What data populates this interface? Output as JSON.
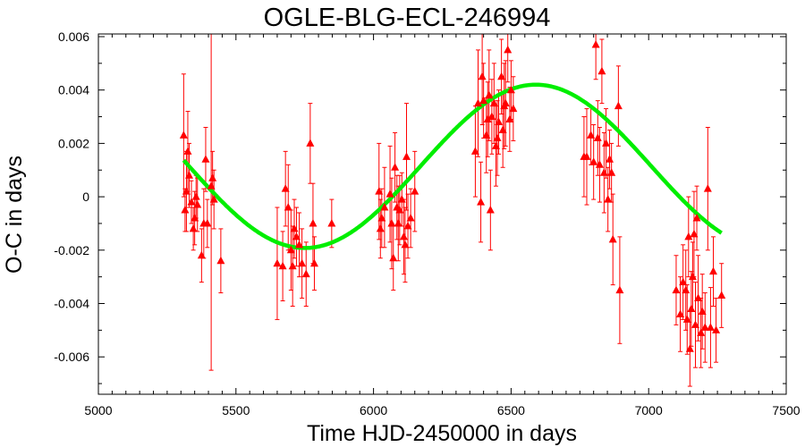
{
  "chart_data": {
    "type": "scatter",
    "title": "OGLE-BLG-ECL-246994",
    "xlabel": "Time HJD-2450000 in days",
    "ylabel": "O-C in days",
    "xlim": [
      5000,
      7500
    ],
    "ylim": [
      -0.0074,
      0.0061
    ],
    "xticks": [
      5000,
      5500,
      6000,
      6500,
      7000,
      7500
    ],
    "xtick_labels": [
      "5000",
      "5500",
      "6000",
      "6500",
      "7000",
      "7500"
    ],
    "yticks": [
      -0.006,
      -0.004,
      -0.002,
      0,
      0.002,
      0.004,
      0.006
    ],
    "ytick_labels": [
      "-0.006",
      "-0.004",
      "-0.002",
      "0",
      "0.002",
      "0.004",
      "0.006"
    ],
    "grid": false,
    "colors": {
      "points": "#ff0000",
      "fit": "#00ee00",
      "axes": "#000000"
    },
    "series": [
      {
        "marker": "triangle",
        "points": [
          {
            "x": 5310,
            "y": 0.0023,
            "err": 0.0023
          },
          {
            "x": 5315,
            "y": -0.0005,
            "err": 0.0008
          },
          {
            "x": 5320,
            "y": 0.0002,
            "err": 0.0015
          },
          {
            "x": 5325,
            "y": 0.0017,
            "err": 0.0015
          },
          {
            "x": 5330,
            "y": 0.0008,
            "err": 0.0012
          },
          {
            "x": 5338,
            "y": -0.0002,
            "err": 0.0008
          },
          {
            "x": 5345,
            "y": -0.0012,
            "err": 0.0008
          },
          {
            "x": 5350,
            "y": -0.0008,
            "err": 0.001
          },
          {
            "x": 5355,
            "y": 0.0,
            "err": 0.0008
          },
          {
            "x": 5360,
            "y": -0.0003,
            "err": 0.001
          },
          {
            "x": 5375,
            "y": -0.0022,
            "err": 0.001
          },
          {
            "x": 5383,
            "y": -0.001,
            "err": 0.0013
          },
          {
            "x": 5390,
            "y": 0.0014,
            "err": 0.0012
          },
          {
            "x": 5396,
            "y": -0.001,
            "err": 0.0009
          },
          {
            "x": 5410,
            "y": 0.0004,
            "err": 0.0069
          },
          {
            "x": 5415,
            "y": 0.0007,
            "err": 0.001
          },
          {
            "x": 5420,
            "y": -0.0001,
            "err": 0.0011
          },
          {
            "x": 5445,
            "y": -0.0024,
            "err": 0.0012
          },
          {
            "x": 5650,
            "y": -0.0025,
            "err": 0.0021
          },
          {
            "x": 5670,
            "y": -0.0026,
            "err": 0.0013
          },
          {
            "x": 5680,
            "y": 0.0003,
            "err": 0.0014
          },
          {
            "x": 5690,
            "y": -0.0004,
            "err": 0.0016
          },
          {
            "x": 5700,
            "y": -0.002,
            "err": 0.0015
          },
          {
            "x": 5706,
            "y": -0.0026,
            "err": 0.0015
          },
          {
            "x": 5712,
            "y": -0.0012,
            "err": 0.0011
          },
          {
            "x": 5720,
            "y": -0.0015,
            "err": 0.0011
          },
          {
            "x": 5730,
            "y": -0.0018,
            "err": 0.0012
          },
          {
            "x": 5740,
            "y": -0.0025,
            "err": 0.0013
          },
          {
            "x": 5755,
            "y": -0.0029,
            "err": 0.0012
          },
          {
            "x": 5770,
            "y": 0.002,
            "err": 0.0015
          },
          {
            "x": 5780,
            "y": -0.001,
            "err": 0.0015
          },
          {
            "x": 5785,
            "y": -0.0025,
            "err": 0.001
          },
          {
            "x": 5848,
            "y": -0.001,
            "err": 0.0009
          },
          {
            "x": 6020,
            "y": 0.0002,
            "err": 0.0018
          },
          {
            "x": 6025,
            "y": -0.0012,
            "err": 0.0011
          },
          {
            "x": 6030,
            "y": -0.0008,
            "err": 0.0011
          },
          {
            "x": 6040,
            "y": -0.0004,
            "err": 0.0015
          },
          {
            "x": 6060,
            "y": 0.0001,
            "err": 0.0018
          },
          {
            "x": 6066,
            "y": -0.001,
            "err": 0.0017
          },
          {
            "x": 6072,
            "y": -0.0023,
            "err": 0.0012
          },
          {
            "x": 6078,
            "y": 0.0011,
            "err": 0.0013
          },
          {
            "x": 6085,
            "y": -0.0004,
            "err": 0.0012
          },
          {
            "x": 6090,
            "y": -0.001,
            "err": 0.0014
          },
          {
            "x": 6095,
            "y": -0.0005,
            "err": 0.0013
          },
          {
            "x": 6103,
            "y": -0.0001,
            "err": 0.001
          },
          {
            "x": 6110,
            "y": -0.0015,
            "err": 0.0014
          },
          {
            "x": 6115,
            "y": -0.0018,
            "err": 0.0014
          },
          {
            "x": 6120,
            "y": 0.0015,
            "err": 0.002
          },
          {
            "x": 6125,
            "y": -0.0011,
            "err": 0.0012
          },
          {
            "x": 6135,
            "y": -0.0008,
            "err": 0.0011
          },
          {
            "x": 6150,
            "y": 0.0002,
            "err": 0.0015
          },
          {
            "x": 6370,
            "y": 0.0017,
            "err": 0.0017
          },
          {
            "x": 6380,
            "y": 0.0035,
            "err": 0.002
          },
          {
            "x": 6390,
            "y": -0.0002,
            "err": 0.0015
          },
          {
            "x": 6395,
            "y": 0.0045,
            "err": 0.0018
          },
          {
            "x": 6400,
            "y": 0.0036,
            "err": 0.0014
          },
          {
            "x": 6410,
            "y": 0.0023,
            "err": 0.0014
          },
          {
            "x": 6415,
            "y": 0.0029,
            "err": 0.0014
          },
          {
            "x": 6420,
            "y": 0.0038,
            "err": 0.0017
          },
          {
            "x": 6425,
            "y": -0.0005,
            "err": 0.0015
          },
          {
            "x": 6430,
            "y": 0.003,
            "err": 0.0014
          },
          {
            "x": 6438,
            "y": 0.0035,
            "err": 0.0015
          },
          {
            "x": 6445,
            "y": 0.0019,
            "err": 0.0015
          },
          {
            "x": 6450,
            "y": 0.0022,
            "err": 0.0014
          },
          {
            "x": 6455,
            "y": 0.0028,
            "err": 0.0012
          },
          {
            "x": 6465,
            "y": 0.0045,
            "err": 0.0014
          },
          {
            "x": 6470,
            "y": 0.0025,
            "err": 0.0014
          },
          {
            "x": 6475,
            "y": 0.0034,
            "err": 0.0016
          },
          {
            "x": 6480,
            "y": 0.0035,
            "err": 0.0016
          },
          {
            "x": 6488,
            "y": 0.0055,
            "err": 0.0012
          },
          {
            "x": 6495,
            "y": 0.0029,
            "err": 0.0012
          },
          {
            "x": 6500,
            "y": 0.004,
            "err": 0.0011
          },
          {
            "x": 6508,
            "y": 0.0033,
            "err": 0.0012
          },
          {
            "x": 6765,
            "y": 0.0015,
            "err": 0.0015
          },
          {
            "x": 6775,
            "y": 0.0015,
            "err": 0.0018
          },
          {
            "x": 6790,
            "y": 0.0023,
            "err": 0.0011
          },
          {
            "x": 6800,
            "y": 0.0013,
            "err": 0.0014
          },
          {
            "x": 6808,
            "y": 0.0057,
            "err": 0.0013
          },
          {
            "x": 6815,
            "y": 0.0022,
            "err": 0.0014
          },
          {
            "x": 6822,
            "y": 0.0012,
            "err": 0.0014
          },
          {
            "x": 6830,
            "y": 0.0047,
            "err": 0.0012
          },
          {
            "x": 6838,
            "y": 0.0009,
            "err": 0.0015
          },
          {
            "x": 6845,
            "y": 0.002,
            "err": 0.0013
          },
          {
            "x": 6852,
            "y": -0.0001,
            "err": 0.0012
          },
          {
            "x": 6858,
            "y": 0.0014,
            "err": 0.0011
          },
          {
            "x": 6865,
            "y": 0.0009,
            "err": 0.0011
          },
          {
            "x": 6870,
            "y": -0.0016,
            "err": 0.0017
          },
          {
            "x": 6890,
            "y": 0.0034,
            "err": 0.0015
          },
          {
            "x": 6895,
            "y": -0.0035,
            "err": 0.002
          },
          {
            "x": 7100,
            "y": -0.0035,
            "err": 0.0013
          },
          {
            "x": 7115,
            "y": -0.0044,
            "err": 0.0014
          },
          {
            "x": 7125,
            "y": -0.0032,
            "err": 0.0014
          },
          {
            "x": 7135,
            "y": -0.0035,
            "err": 0.0015
          },
          {
            "x": 7140,
            "y": -0.0046,
            "err": 0.0013
          },
          {
            "x": 7145,
            "y": -0.0015,
            "err": 0.0015
          },
          {
            "x": 7150,
            "y": -0.0057,
            "err": 0.0014
          },
          {
            "x": 7155,
            "y": -0.0042,
            "err": 0.0014
          },
          {
            "x": 7160,
            "y": -0.003,
            "err": 0.0013
          },
          {
            "x": 7165,
            "y": -0.0014,
            "err": 0.0016
          },
          {
            "x": 7170,
            "y": -0.0048,
            "err": 0.0016
          },
          {
            "x": 7175,
            "y": -0.0008,
            "err": 0.0012
          },
          {
            "x": 7180,
            "y": -0.0038,
            "err": 0.0016
          },
          {
            "x": 7190,
            "y": -0.0051,
            "err": 0.0013
          },
          {
            "x": 7195,
            "y": -0.0043,
            "err": 0.0014
          },
          {
            "x": 7205,
            "y": -0.0049,
            "err": 0.0013
          },
          {
            "x": 7215,
            "y": 0.0003,
            "err": 0.0023
          },
          {
            "x": 7225,
            "y": -0.0049,
            "err": 0.0015
          },
          {
            "x": 7235,
            "y": -0.0028,
            "err": 0.0013
          },
          {
            "x": 7245,
            "y": -0.005,
            "err": 0.0012
          },
          {
            "x": 7265,
            "y": -0.0037,
            "err": 0.0012
          }
        ]
      }
    ],
    "fit": {
      "type": "sinusoid",
      "offset": 0.00114,
      "amplitude": 0.00306,
      "period": 1680,
      "phase_x": 6170,
      "x_range": [
        5310,
        7265
      ]
    }
  }
}
